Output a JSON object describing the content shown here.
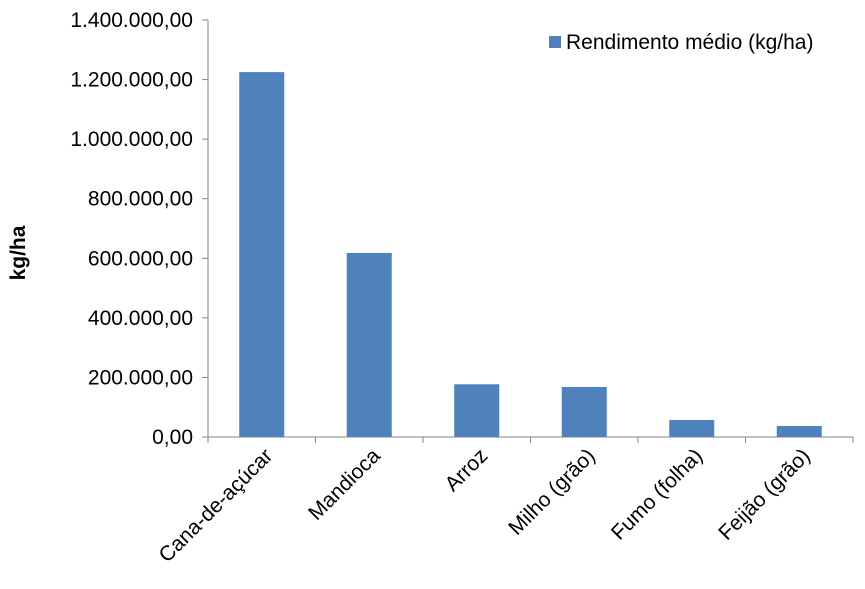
{
  "chart_data": {
    "type": "bar",
    "title": "",
    "xlabel": "",
    "ylabel": "kg/ha",
    "ylim": [
      0,
      1400000
    ],
    "ytick_step": 200000,
    "ytick_labels": [
      "0,00",
      "200.000,00",
      "400.000,00",
      "600.000,00",
      "800.000,00",
      "1.000.000,00",
      "1.200.000,00",
      "1.400.000,00"
    ],
    "grid": false,
    "legend_position": "top-right",
    "categories": [
      "Cana-de-açúcar",
      "Mandioca",
      "Arroz",
      "Milho (grão)",
      "Fumo (folha)",
      "Feijão (grão)"
    ],
    "series": [
      {
        "name": "Rendimento médio (kg/ha)",
        "color": "#4f81bd",
        "values": [
          1225000,
          618000,
          177000,
          168000,
          57000,
          37000
        ]
      }
    ]
  }
}
